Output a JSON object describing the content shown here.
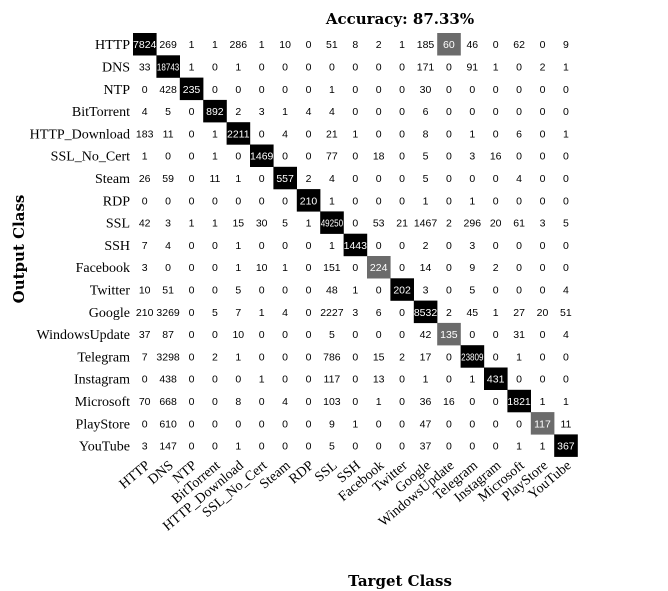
{
  "chart_data": {
    "type": "heatmap",
    "title": "Accuracy: 87.33%",
    "xlabel": "Target Class",
    "ylabel": "Output Class",
    "classes": [
      "HTTP",
      "DNS",
      "NTP",
      "BitTorrent",
      "HTTP_Download",
      "SSL_No_Cert",
      "Steam",
      "RDP",
      "SSL",
      "SSH",
      "Facebook",
      "Twitter",
      "Google",
      "WindowsUpdate",
      "Telegram",
      "Instagram",
      "Microsoft",
      "PlayStore",
      "YouTube"
    ],
    "matrix": [
      [
        7824,
        269,
        1,
        1,
        286,
        1,
        10,
        0,
        51,
        8,
        2,
        1,
        185,
        60,
        46,
        0,
        62,
        0,
        9
      ],
      [
        33,
        18743,
        1,
        0,
        1,
        0,
        0,
        0,
        0,
        0,
        0,
        0,
        171,
        0,
        91,
        1,
        0,
        2,
        1
      ],
      [
        0,
        428,
        235,
        0,
        0,
        0,
        0,
        0,
        1,
        0,
        0,
        0,
        30,
        0,
        0,
        0,
        0,
        0,
        0
      ],
      [
        4,
        5,
        0,
        892,
        2,
        3,
        1,
        4,
        4,
        0,
        0,
        0,
        6,
        0,
        0,
        0,
        0,
        0,
        0
      ],
      [
        183,
        11,
        0,
        1,
        2211,
        0,
        4,
        0,
        21,
        1,
        0,
        0,
        8,
        0,
        1,
        0,
        6,
        0,
        1
      ],
      [
        1,
        0,
        0,
        1,
        0,
        1469,
        0,
        0,
        77,
        0,
        18,
        0,
        5,
        0,
        3,
        16,
        0,
        0,
        0
      ],
      [
        26,
        59,
        0,
        11,
        1,
        0,
        557,
        2,
        4,
        0,
        0,
        0,
        5,
        0,
        0,
        0,
        4,
        0,
        0
      ],
      [
        0,
        0,
        0,
        0,
        0,
        0,
        0,
        210,
        1,
        0,
        0,
        0,
        1,
        0,
        1,
        0,
        0,
        0,
        0
      ],
      [
        42,
        3,
        1,
        1,
        15,
        30,
        5,
        1,
        49250,
        0,
        53,
        21,
        1467,
        2,
        296,
        20,
        61,
        3,
        5
      ],
      [
        7,
        4,
        0,
        0,
        1,
        0,
        0,
        0,
        1,
        1443,
        0,
        0,
        2,
        0,
        3,
        0,
        0,
        0,
        0
      ],
      [
        3,
        0,
        0,
        0,
        1,
        10,
        1,
        0,
        151,
        0,
        224,
        0,
        14,
        0,
        9,
        2,
        0,
        0,
        0
      ],
      [
        10,
        51,
        0,
        0,
        5,
        0,
        0,
        0,
        48,
        1,
        0,
        202,
        3,
        0,
        5,
        0,
        0,
        0,
        4
      ],
      [
        210,
        3269,
        0,
        5,
        7,
        1,
        4,
        0,
        2227,
        3,
        6,
        0,
        8532,
        2,
        45,
        1,
        27,
        20,
        51
      ],
      [
        37,
        87,
        0,
        0,
        10,
        0,
        0,
        0,
        5,
        0,
        0,
        0,
        42,
        135,
        0,
        0,
        31,
        0,
        4
      ],
      [
        7,
        3298,
        0,
        2,
        1,
        0,
        0,
        0,
        786,
        0,
        15,
        2,
        17,
        0,
        23809,
        0,
        1,
        0,
        0
      ],
      [
        0,
        438,
        0,
        0,
        0,
        1,
        0,
        0,
        117,
        0,
        13,
        0,
        1,
        0,
        1,
        431,
        0,
        0,
        0
      ],
      [
        70,
        668,
        0,
        0,
        8,
        0,
        4,
        0,
        103,
        0,
        1,
        0,
        36,
        16,
        0,
        0,
        1821,
        1,
        1
      ],
      [
        0,
        610,
        0,
        0,
        0,
        0,
        0,
        0,
        9,
        1,
        0,
        0,
        47,
        0,
        0,
        0,
        0,
        117,
        11
      ],
      [
        3,
        147,
        0,
        0,
        1,
        0,
        0,
        0,
        5,
        0,
        0,
        0,
        37,
        0,
        0,
        0,
        1,
        1,
        367
      ]
    ],
    "highlighted": [
      [
        0,
        13
      ],
      [
        10,
        10
      ],
      [
        13,
        13
      ],
      [
        17,
        17
      ]
    ],
    "colors": {
      "diagonal": "#000000",
      "highlight": "#6b6b6b",
      "text_dark": "#000000",
      "text_light": "#ffffff"
    }
  }
}
